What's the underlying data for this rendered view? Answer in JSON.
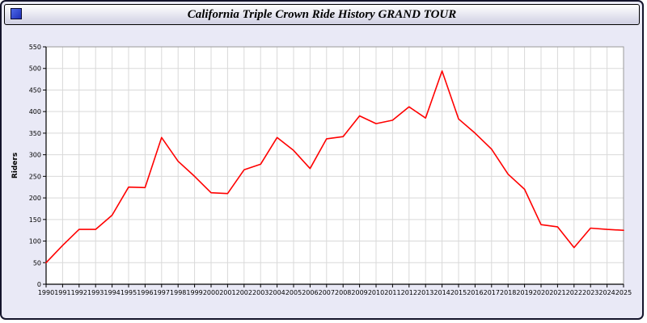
{
  "window": {
    "title": "California Triple Crown Ride History GRAND TOUR",
    "icon": "blue-square-app-icon"
  },
  "colors": {
    "window_background": "#e9e9f6",
    "plot_background": "#ffffff",
    "gridline": "#d9d9d9",
    "axis": "#000000",
    "plot_border": "#9a9a9a",
    "series_line": "#ff0000"
  },
  "chart_data": {
    "type": "line",
    "title": "California Triple Crown Ride History GRAND TOUR",
    "xlabel": "",
    "ylabel": "Riders",
    "ylim": [
      0,
      550
    ],
    "ytick_step": 50,
    "yticks": [
      0,
      50,
      100,
      150,
      200,
      250,
      300,
      350,
      400,
      450,
      500,
      550
    ],
    "grid": true,
    "legend_position": "none",
    "x": [
      1990,
      1991,
      1992,
      1993,
      1994,
      1995,
      1996,
      1997,
      1998,
      1999,
      2000,
      2001,
      2002,
      2003,
      2004,
      2005,
      2006,
      2007,
      2008,
      2009,
      2010,
      2011,
      2012,
      2013,
      2014,
      2015,
      2016,
      2017,
      2018,
      2019,
      2020,
      2021,
      2022,
      2023,
      2024,
      2025
    ],
    "series": [
      {
        "name": "Riders",
        "color": "#ff0000",
        "values": [
          50,
          90,
          127,
          127,
          160,
          225,
          224,
          340,
          285,
          250,
          212,
          210,
          265,
          278,
          340,
          310,
          268,
          337,
          342,
          390,
          372,
          380,
          411,
          385,
          494,
          383,
          350,
          313,
          255,
          220,
          138,
          133,
          85,
          130,
          127,
          125
        ]
      }
    ]
  }
}
